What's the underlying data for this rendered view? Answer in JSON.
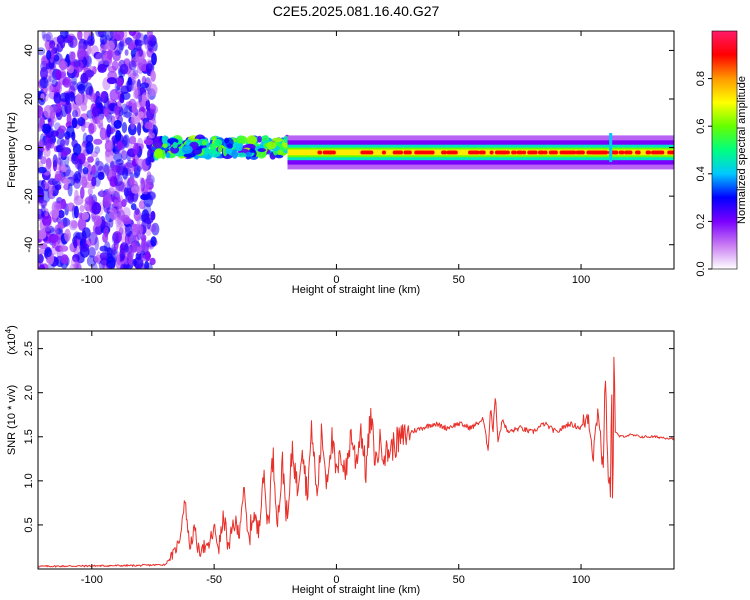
{
  "title": "C2E5.2025.081.16.40.G27",
  "chart_data": [
    {
      "type": "heatmap",
      "title": "C2E5.2025.081.16.40.G27",
      "xlabel": "Height of straight line (km)",
      "ylabel": "Frequency (Hz)",
      "xlim": [
        -122,
        138
      ],
      "ylim": [
        -50,
        48
      ],
      "xticks": [
        -100,
        -50,
        0,
        50,
        100
      ],
      "yticks": [
        -40,
        -20,
        0,
        20,
        40
      ],
      "colorbar": {
        "label": "Normalized spectral amplitude",
        "range": [
          0.0,
          1.0
        ],
        "ticks": [
          "0.0",
          "0.2",
          "0.4",
          "0.6",
          "0.8"
        ],
        "colormap": [
          "#ffffff",
          "#c97cf2",
          "#7a00ff",
          "#0000ff",
          "#00c8ff",
          "#00ff7f",
          "#66ff00",
          "#ffff00",
          "#ff9900",
          "#ff0000",
          "#ff1a6a"
        ]
      },
      "description_bands": [
        {
          "x_range": [
            -122,
            -74
          ],
          "pattern": "broadband noise",
          "amplitude": 0.15
        },
        {
          "x_range": [
            -74,
            -20
          ],
          "pattern": "signal onset near 0 Hz",
          "amplitude": 0.45
        },
        {
          "x_range": [
            -20,
            138
          ],
          "pattern": "steady carrier near -2 Hz",
          "amplitude": 0.8
        }
      ]
    },
    {
      "type": "line",
      "xlabel": "Height of straight line (km)",
      "ylabel": "SNR (10 * v/v)",
      "y_scale_label": "(x10",
      "y_scale_exponent": "4",
      "y_scale_close": ")",
      "xlim": [
        -122,
        138
      ],
      "ylim": [
        0.0,
        2.7
      ],
      "xticks": [
        -100,
        -50,
        0,
        50,
        100
      ],
      "yticks": [
        0.5,
        1.0,
        1.5,
        2.0,
        2.5
      ],
      "ytick_labels": [
        "0.5",
        "1.0",
        "1.5",
        "2.0",
        "2.5"
      ],
      "color": "#e8302a",
      "series": [
        {
          "name": "SNR",
          "x": [
            -122,
            -80,
            -70,
            -66,
            -64,
            -62,
            -60,
            -58,
            -56,
            -55,
            -53,
            -50,
            -48,
            -46,
            -44,
            -42,
            -40,
            -38,
            -36,
            -34,
            -32,
            -30,
            -28,
            -26,
            -24,
            -22,
            -20,
            -18,
            -16,
            -14,
            -12,
            -10,
            -8,
            -6,
            -4,
            -2,
            0,
            2,
            4,
            6,
            8,
            10,
            12,
            14,
            16,
            18,
            20,
            25,
            30,
            35,
            40,
            45,
            50,
            55,
            60,
            62,
            63,
            64,
            65,
            66,
            68,
            70,
            75,
            80,
            85,
            90,
            95,
            100,
            103,
            105,
            107,
            109,
            110,
            111,
            112,
            112.5,
            113,
            113.5,
            114,
            116,
            120,
            125,
            130,
            138
          ],
          "values": [
            0.03,
            0.04,
            0.05,
            0.2,
            0.35,
            0.8,
            0.25,
            0.45,
            0.15,
            0.3,
            0.2,
            0.45,
            0.25,
            0.6,
            0.2,
            0.55,
            0.4,
            0.9,
            0.3,
            0.65,
            0.4,
            1.1,
            0.5,
            1.3,
            0.55,
            1.2,
            0.5,
            1.4,
            0.9,
            1.45,
            0.85,
            1.6,
            0.8,
            1.55,
            1.0,
            1.5,
            1.05,
            1.3,
            1.1,
            1.55,
            1.2,
            1.6,
            1.1,
            1.73,
            1.2,
            1.45,
            1.3,
            1.45,
            1.55,
            1.6,
            1.65,
            1.6,
            1.65,
            1.6,
            1.7,
            1.35,
            1.85,
            1.55,
            2.0,
            1.45,
            1.7,
            1.55,
            1.6,
            1.55,
            1.65,
            1.55,
            1.65,
            1.6,
            1.75,
            1.3,
            1.85,
            1.1,
            2.25,
            1.0,
            0.9,
            2.3,
            0.4,
            2.7,
            1.55,
            1.5,
            1.52,
            1.5,
            1.5,
            1.48
          ]
        }
      ]
    }
  ]
}
